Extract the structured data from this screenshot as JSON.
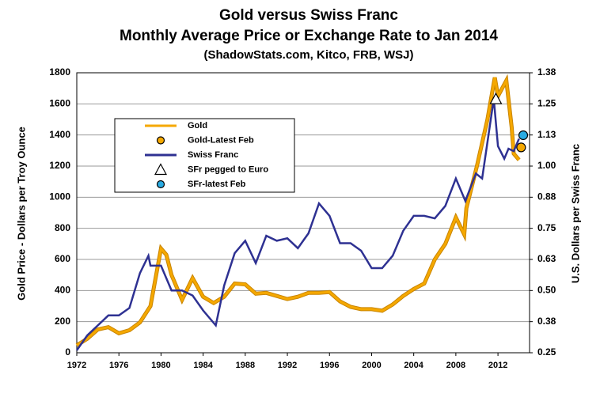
{
  "chart_data": {
    "type": "line",
    "title": "Gold versus Swiss Franc",
    "subtitle": "Monthly Average Price or Exchange Rate to Jan 2014",
    "source": "(ShadowStats.com, Kitco, FRB, WSJ)",
    "ylabel": "Gold Price - Dollars per Troy Ounce",
    "y2label": "U.S. Dollars per Swiss Franc",
    "xlim": [
      1972,
      2015
    ],
    "xticks": [
      1972,
      1976,
      1980,
      1984,
      1988,
      1992,
      1996,
      2000,
      2004,
      2008,
      2012
    ],
    "ylim": [
      0,
      1800
    ],
    "yticks": [
      0,
      200,
      400,
      600,
      800,
      1000,
      1200,
      1400,
      1600,
      1800
    ],
    "y2lim": [
      0.25,
      1.375
    ],
    "y2ticks": [
      0.25,
      {
        "value": 0.375,
        "label": "0.38"
      },
      {
        "value": 0.5,
        "label": "0.50"
      },
      {
        "value": 0.625,
        "label": "0.63"
      },
      0.75,
      {
        "value": 0.875,
        "label": "0.88"
      },
      {
        "value": 1,
        "label": "1.00"
      },
      {
        "value": 1.125,
        "label": "1.13"
      },
      1.25,
      {
        "value": 1.375,
        "label": "1.38"
      }
    ],
    "grid": true,
    "series": [
      {
        "name": "Gold",
        "kind": "line",
        "color": "#f5a800",
        "x": [
          1972,
          1973,
          1974,
          1975,
          1976,
          1977,
          1978,
          1979,
          1980,
          1980.5,
          1981,
          1982,
          1983,
          1984,
          1985,
          1986,
          1987,
          1988,
          1989,
          1990,
          1991,
          1992,
          1993,
          1994,
          1995,
          1996,
          1997,
          1998,
          1999,
          2000,
          2001,
          2002,
          2003,
          2004,
          2005,
          2006,
          2007,
          2008,
          2008.8,
          2009,
          2010,
          2011,
          2011.7,
          2012,
          2012.8,
          2013.3,
          2013.5,
          2014
        ],
        "values": [
          48,
          90,
          150,
          165,
          125,
          145,
          195,
          300,
          670,
          630,
          500,
          340,
          480,
          360,
          320,
          360,
          445,
          440,
          380,
          385,
          365,
          345,
          360,
          385,
          385,
          390,
          330,
          295,
          280,
          280,
          270,
          310,
          365,
          410,
          445,
          600,
          700,
          870,
          760,
          930,
          1200,
          1500,
          1770,
          1650,
          1750,
          1450,
          1280,
          1240
        ]
      },
      {
        "name": "Gold-Latest Feb",
        "kind": "circle",
        "color": "#f5a800",
        "x": [
          2014.2
        ],
        "values": [
          1320
        ]
      },
      {
        "name": "Swiss Franc",
        "kind": "line",
        "color": "#2e3192",
        "axis": "y2",
        "x": [
          1972,
          1973,
          1974,
          1975,
          1976,
          1977,
          1978,
          1978.8,
          1979,
          1980,
          1981,
          1982,
          1983,
          1984,
          1985.2,
          1986,
          1987,
          1988,
          1989,
          1990,
          1991,
          1992,
          1993,
          1994,
          1995,
          1996,
          1997,
          1998,
          1999,
          2000,
          2001,
          2002,
          2003,
          2004,
          2005,
          2006,
          2007,
          2008,
          2008.9,
          2009.9,
          2010.5,
          2011.6,
          2012,
          2012.6,
          2013,
          2013.5,
          2014
        ],
        "values": [
          0.26,
          0.32,
          0.36,
          0.4,
          0.4,
          0.43,
          0.57,
          0.64,
          0.6,
          0.6,
          0.5,
          0.5,
          0.48,
          0.42,
          0.36,
          0.52,
          0.65,
          0.7,
          0.61,
          0.72,
          0.7,
          0.71,
          0.67,
          0.73,
          0.85,
          0.8,
          0.69,
          0.69,
          0.66,
          0.59,
          0.59,
          0.64,
          0.74,
          0.8,
          0.8,
          0.79,
          0.84,
          0.95,
          0.86,
          0.97,
          0.95,
          1.27,
          1.08,
          1.03,
          1.07,
          1.06,
          1.11
        ]
      },
      {
        "name": "SFr pegged to Euro",
        "kind": "triangle",
        "color": "#ffffff",
        "axis": "y2",
        "x": [
          2011.8
        ],
        "values": [
          1.27
        ]
      },
      {
        "name": "SFr-latest Feb",
        "kind": "circle",
        "color": "#29abe2",
        "axis": "y2",
        "x": [
          2014.4
        ],
        "values": [
          1.124
        ]
      }
    ]
  }
}
